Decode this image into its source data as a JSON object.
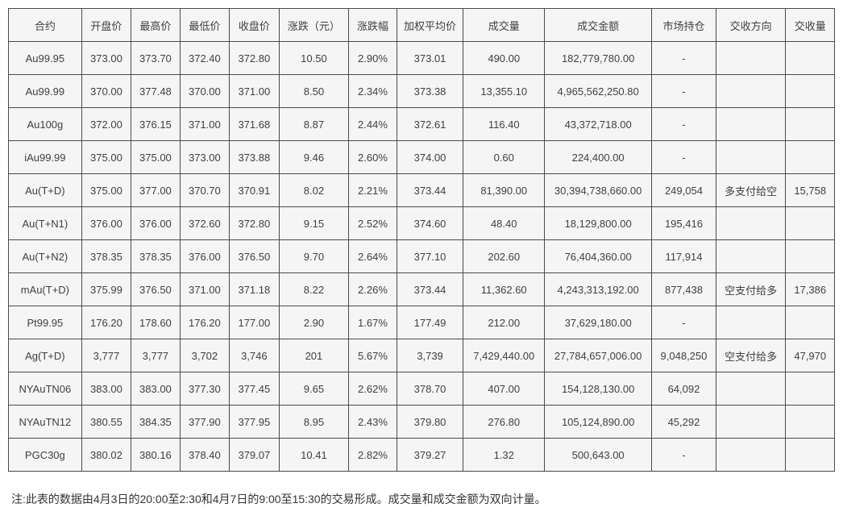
{
  "chart_data": {
    "type": "table",
    "title": "",
    "columns": [
      "合约",
      "开盘价",
      "最高价",
      "最低价",
      "收盘价",
      "涨跌（元）",
      "涨跌幅",
      "加权平均价",
      "成交量",
      "成交金额",
      "市场持仓",
      "交收方向",
      "交收量"
    ],
    "rows": [
      {
        "cells": [
          "Au99.95",
          "373.00",
          "373.70",
          "372.40",
          "372.80",
          "10.50",
          "2.90%",
          "373.01",
          "490.00",
          "182,779,780.00",
          "-",
          "",
          ""
        ]
      },
      {
        "cells": [
          "Au99.99",
          "370.00",
          "377.48",
          "370.00",
          "371.00",
          "8.50",
          "2.34%",
          "373.38",
          "13,355.10",
          "4,965,562,250.80",
          "-",
          "",
          ""
        ]
      },
      {
        "cells": [
          "Au100g",
          "372.00",
          "376.15",
          "371.00",
          "371.68",
          "8.87",
          "2.44%",
          "372.61",
          "116.40",
          "43,372,718.00",
          "-",
          "",
          ""
        ]
      },
      {
        "cells": [
          "iAu99.99",
          "375.00",
          "375.00",
          "373.00",
          "373.88",
          "9.46",
          "2.60%",
          "374.00",
          "0.60",
          "224,400.00",
          "-",
          "",
          ""
        ]
      },
      {
        "cells": [
          "Au(T+D)",
          "375.00",
          "377.00",
          "370.70",
          "370.91",
          "8.02",
          "2.21%",
          "373.44",
          "81,390.00",
          "30,394,738,660.00",
          "249,054",
          "多支付给空",
          "15,758"
        ]
      },
      {
        "cells": [
          "Au(T+N1)",
          "376.00",
          "376.00",
          "372.60",
          "372.80",
          "9.15",
          "2.52%",
          "374.60",
          "48.40",
          "18,129,800.00",
          "195,416",
          "",
          ""
        ]
      },
      {
        "cells": [
          "Au(T+N2)",
          "378.35",
          "378.35",
          "376.00",
          "376.50",
          "9.70",
          "2.64%",
          "377.10",
          "202.60",
          "76,404,360.00",
          "117,914",
          "",
          ""
        ]
      },
      {
        "cells": [
          "mAu(T+D)",
          "375.99",
          "376.50",
          "371.00",
          "371.18",
          "8.22",
          "2.26%",
          "373.44",
          "11,362.60",
          "4,243,313,192.00",
          "877,438",
          "空支付给多",
          "17,386"
        ]
      },
      {
        "cells": [
          "Pt99.95",
          "176.20",
          "178.60",
          "176.20",
          "177.00",
          "2.90",
          "1.67%",
          "177.49",
          "212.00",
          "37,629,180.00",
          "-",
          "",
          ""
        ]
      },
      {
        "cells": [
          "Ag(T+D)",
          "3,777",
          "3,777",
          "3,702",
          "3,746",
          "201",
          "5.67%",
          "3,739",
          "7,429,440.00",
          "27,784,657,006.00",
          "9,048,250",
          "空支付给多",
          "47,970"
        ]
      },
      {
        "cells": [
          "NYAuTN06",
          "383.00",
          "383.00",
          "377.30",
          "377.45",
          "9.65",
          "2.62%",
          "378.70",
          "407.00",
          "154,128,130.00",
          "64,092",
          "",
          ""
        ]
      },
      {
        "cells": [
          "NYAuTN12",
          "380.55",
          "384.35",
          "377.90",
          "377.95",
          "8.95",
          "2.43%",
          "379.80",
          "276.80",
          "105,124,890.00",
          "45,292",
          "",
          ""
        ]
      },
      {
        "cells": [
          "PGC30g",
          "380.02",
          "380.16",
          "378.40",
          "379.07",
          "10.41",
          "2.82%",
          "379.27",
          "1.32",
          "500,643.00",
          "-",
          "",
          ""
        ]
      }
    ],
    "layout": {
      "grid": true,
      "header_row": true
    }
  },
  "note": "注:此表的数据由4月3日的20:00至2:30和4月7日的9:00至15:30的交易形成。成交量和成交金额为双向计量。",
  "colors": {
    "cell_background": "#f5f5f5",
    "border": "#4a4a4a",
    "text": "#3f3f3f",
    "page_background": "#ffffff"
  }
}
